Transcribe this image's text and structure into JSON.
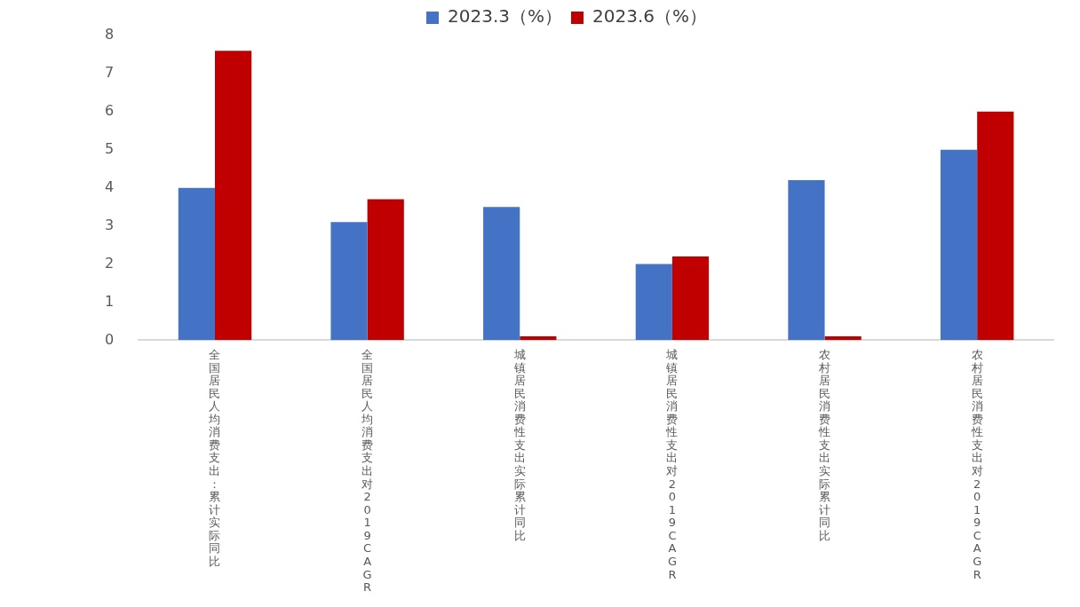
{
  "chart_data": {
    "type": "bar",
    "categories": [
      "全国居民人均消费支出：累计实际同比",
      "全国居民人均消费支出对2019CAGR",
      "城镇居民消费性支出实际累计同比",
      "城镇居民消费性支出对2019CAGR",
      "农村居民消费性支出实际累计同比",
      "农村居民消费性支出对2019CAGR"
    ],
    "series": [
      {
        "name": "2023.3（%）",
        "color": "#4472c4",
        "values": [
          4.0,
          3.1,
          3.5,
          2.0,
          4.2,
          5.0
        ]
      },
      {
        "name": "2023.6（%）",
        "color": "#c00000",
        "values": [
          7.6,
          3.7,
          0.1,
          2.2,
          0.1,
          6.0
        ]
      }
    ],
    "ylim": [
      0,
      8
    ],
    "yticks": [
      0,
      1,
      2,
      3,
      4,
      5,
      6,
      7,
      8
    ],
    "grid": false,
    "legend": "top"
  }
}
